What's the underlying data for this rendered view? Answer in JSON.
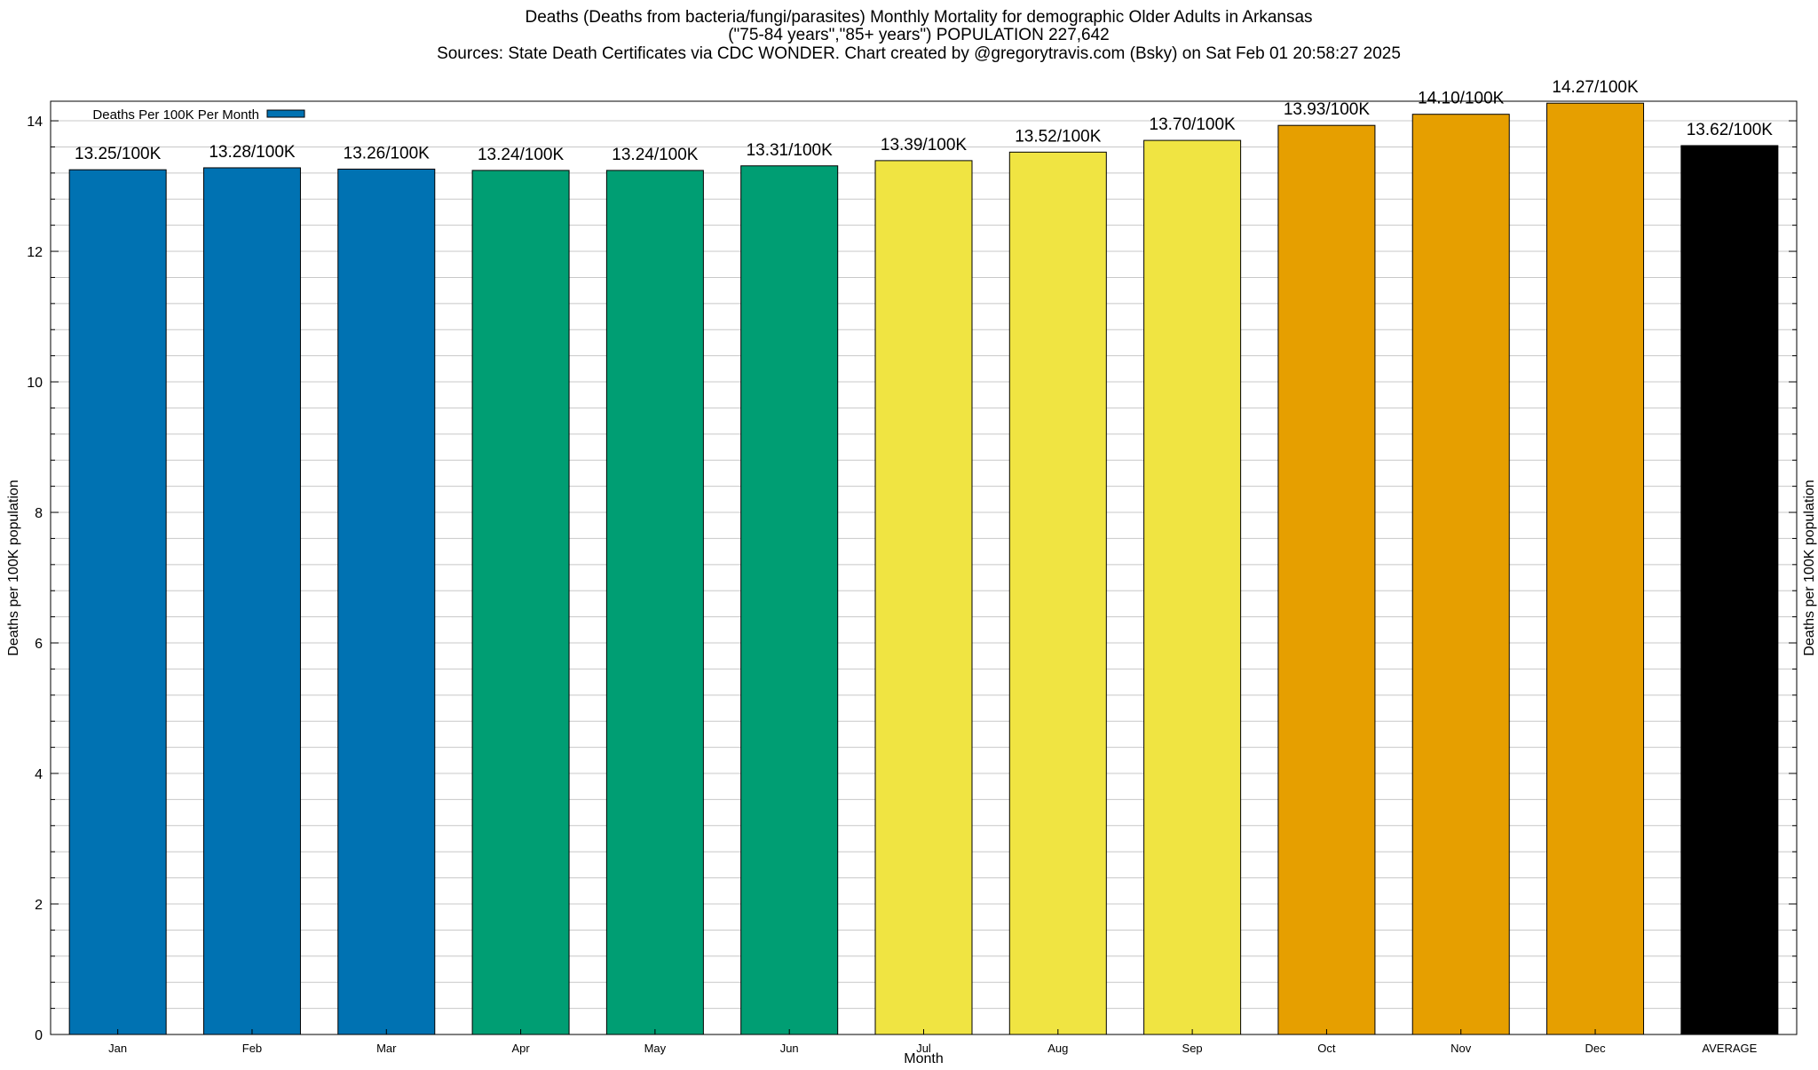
{
  "chart_data": {
    "type": "bar",
    "title_lines": [
      "Deaths (Deaths from bacteria/fungi/parasites) Monthly Mortality for demographic Older Adults in Arkansas",
      "(\"75-84 years\",\"85+ years\") POPULATION 227,642",
      "Sources: State Death Certificates via CDC WONDER.                Chart created by @gregorytravis.com (Bsky) on Sat Feb 01 20:58:27 2025"
    ],
    "xlabel": "Month",
    "ylabel": "Deaths per 100K population",
    "ylabel_right": "Deaths per 100K population",
    "ylim": [
      0,
      14.3
    ],
    "y_ticks": [
      0,
      2,
      4,
      6,
      8,
      10,
      12,
      14
    ],
    "y_minor_step": 0.4,
    "grid": true,
    "legend": {
      "position": "top-left",
      "label": "Deaths Per 100K Per Month",
      "color": "#0072b2"
    },
    "categories": [
      "Jan",
      "Feb",
      "Mar",
      "Apr",
      "May",
      "Jun",
      "Jul",
      "Aug",
      "Sep",
      "Oct",
      "Nov",
      "Dec",
      "AVERAGE"
    ],
    "values": [
      13.25,
      13.28,
      13.26,
      13.24,
      13.24,
      13.31,
      13.39,
      13.52,
      13.7,
      13.93,
      14.1,
      14.27,
      13.62
    ],
    "value_labels": [
      "13.25/100K",
      "13.28/100K",
      "13.26/100K",
      "13.24/100K",
      "13.24/100K",
      "13.31/100K",
      "13.39/100K",
      "13.52/100K",
      "13.70/100K",
      "13.93/100K",
      "14.10/100K",
      "14.27/100K",
      "13.62/100K"
    ],
    "colors": [
      "#0072b2",
      "#0072b2",
      "#0072b2",
      "#009e73",
      "#009e73",
      "#009e73",
      "#f0e442",
      "#f0e442",
      "#f0e442",
      "#e69f00",
      "#e69f00",
      "#e69f00",
      "#000000"
    ]
  }
}
